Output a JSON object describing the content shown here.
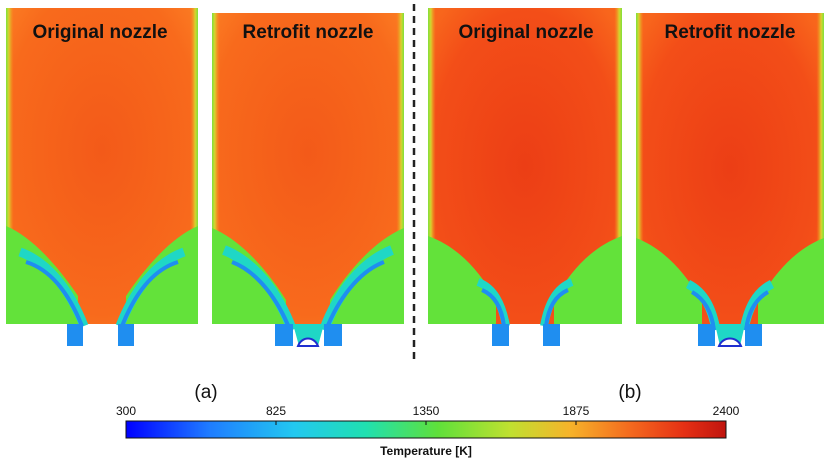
{
  "panels": [
    {
      "title": "Original nozzle",
      "group": "a",
      "variant": "original"
    },
    {
      "title": "Retrofit nozzle",
      "group": "a",
      "variant": "retrofit"
    },
    {
      "title": "Original nozzle",
      "group": "b",
      "variant": "original"
    },
    {
      "title": "Retrofit nozzle",
      "group": "b",
      "variant": "retrofit"
    }
  ],
  "sublabels": {
    "a": "(a)",
    "b": "(b)"
  },
  "colorbar": {
    "title": "Temperature [K]",
    "ticks": [
      "300",
      "825",
      "1350",
      "1875",
      "2400"
    ],
    "min": 300,
    "max": 2400
  },
  "colors": {
    "hot_a": "#f7641b",
    "hot_b": "#f24c18",
    "green": "#63e23a",
    "cyan": "#1fd7c6",
    "blue": "#1f8ef0",
    "outline": "#2fa3e8"
  }
}
